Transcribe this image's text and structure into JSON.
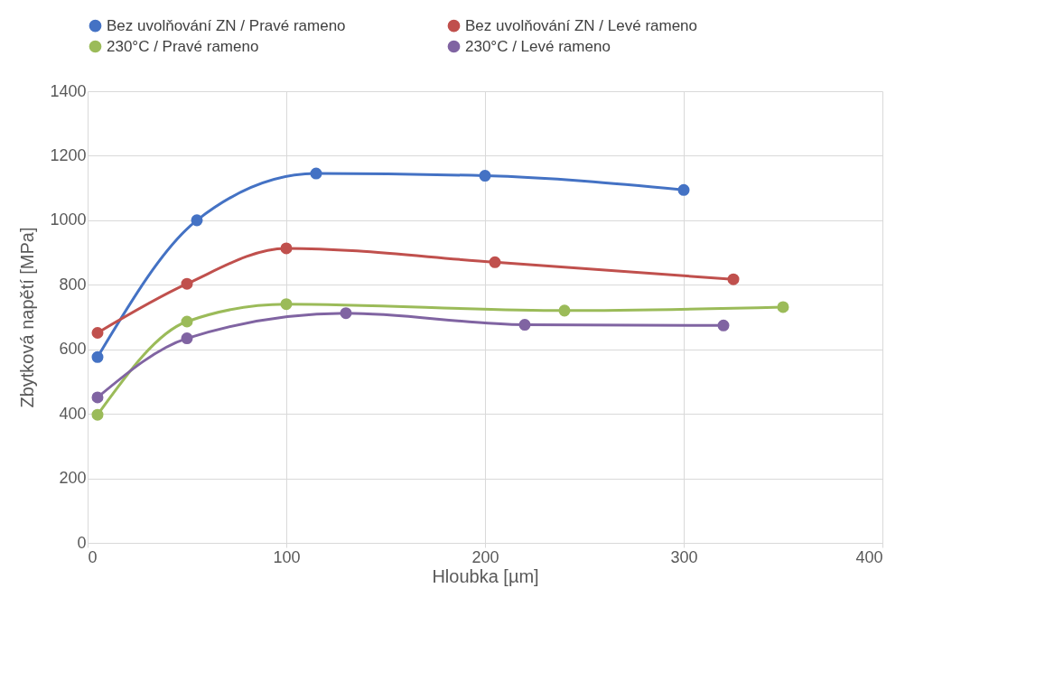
{
  "chart_data": {
    "type": "line",
    "xlabel": "Hloubka [µm]",
    "ylabel": "Zbytková napětí [MPa]",
    "xlim": [
      0,
      400
    ],
    "xticks": [
      0,
      100,
      200,
      300,
      400
    ],
    "ylim": [
      0,
      1400
    ],
    "yticks": [
      0,
      200,
      400,
      600,
      800,
      1000,
      1200,
      1400
    ],
    "grid": true,
    "legend": "top",
    "marker": "circle",
    "line_style": "solid",
    "series": [
      {
        "name": "Bez uvolňování ZN / Pravé rameno",
        "color": "#4472c4",
        "x": [
          5,
          55,
          115,
          200,
          300
        ],
        "values": [
          576,
          1000,
          1145,
          1138,
          1094
        ]
      },
      {
        "name": "Bez uvolňování ZN / Levé rameno",
        "color": "#c0504d",
        "x": [
          5,
          50,
          100,
          205,
          325
        ],
        "values": [
          651,
          803,
          913,
          870,
          817
        ]
      },
      {
        "name": "230°C / Pravé rameno",
        "color": "#9bbb59",
        "x": [
          5,
          50,
          100,
          240,
          350
        ],
        "values": [
          397,
          686,
          740,
          720,
          731
        ]
      },
      {
        "name": "230°C / Levé rameno",
        "color": "#8064a2",
        "x": [
          5,
          50,
          130,
          220,
          320
        ],
        "values": [
          451,
          634,
          712,
          676,
          674
        ]
      }
    ]
  }
}
